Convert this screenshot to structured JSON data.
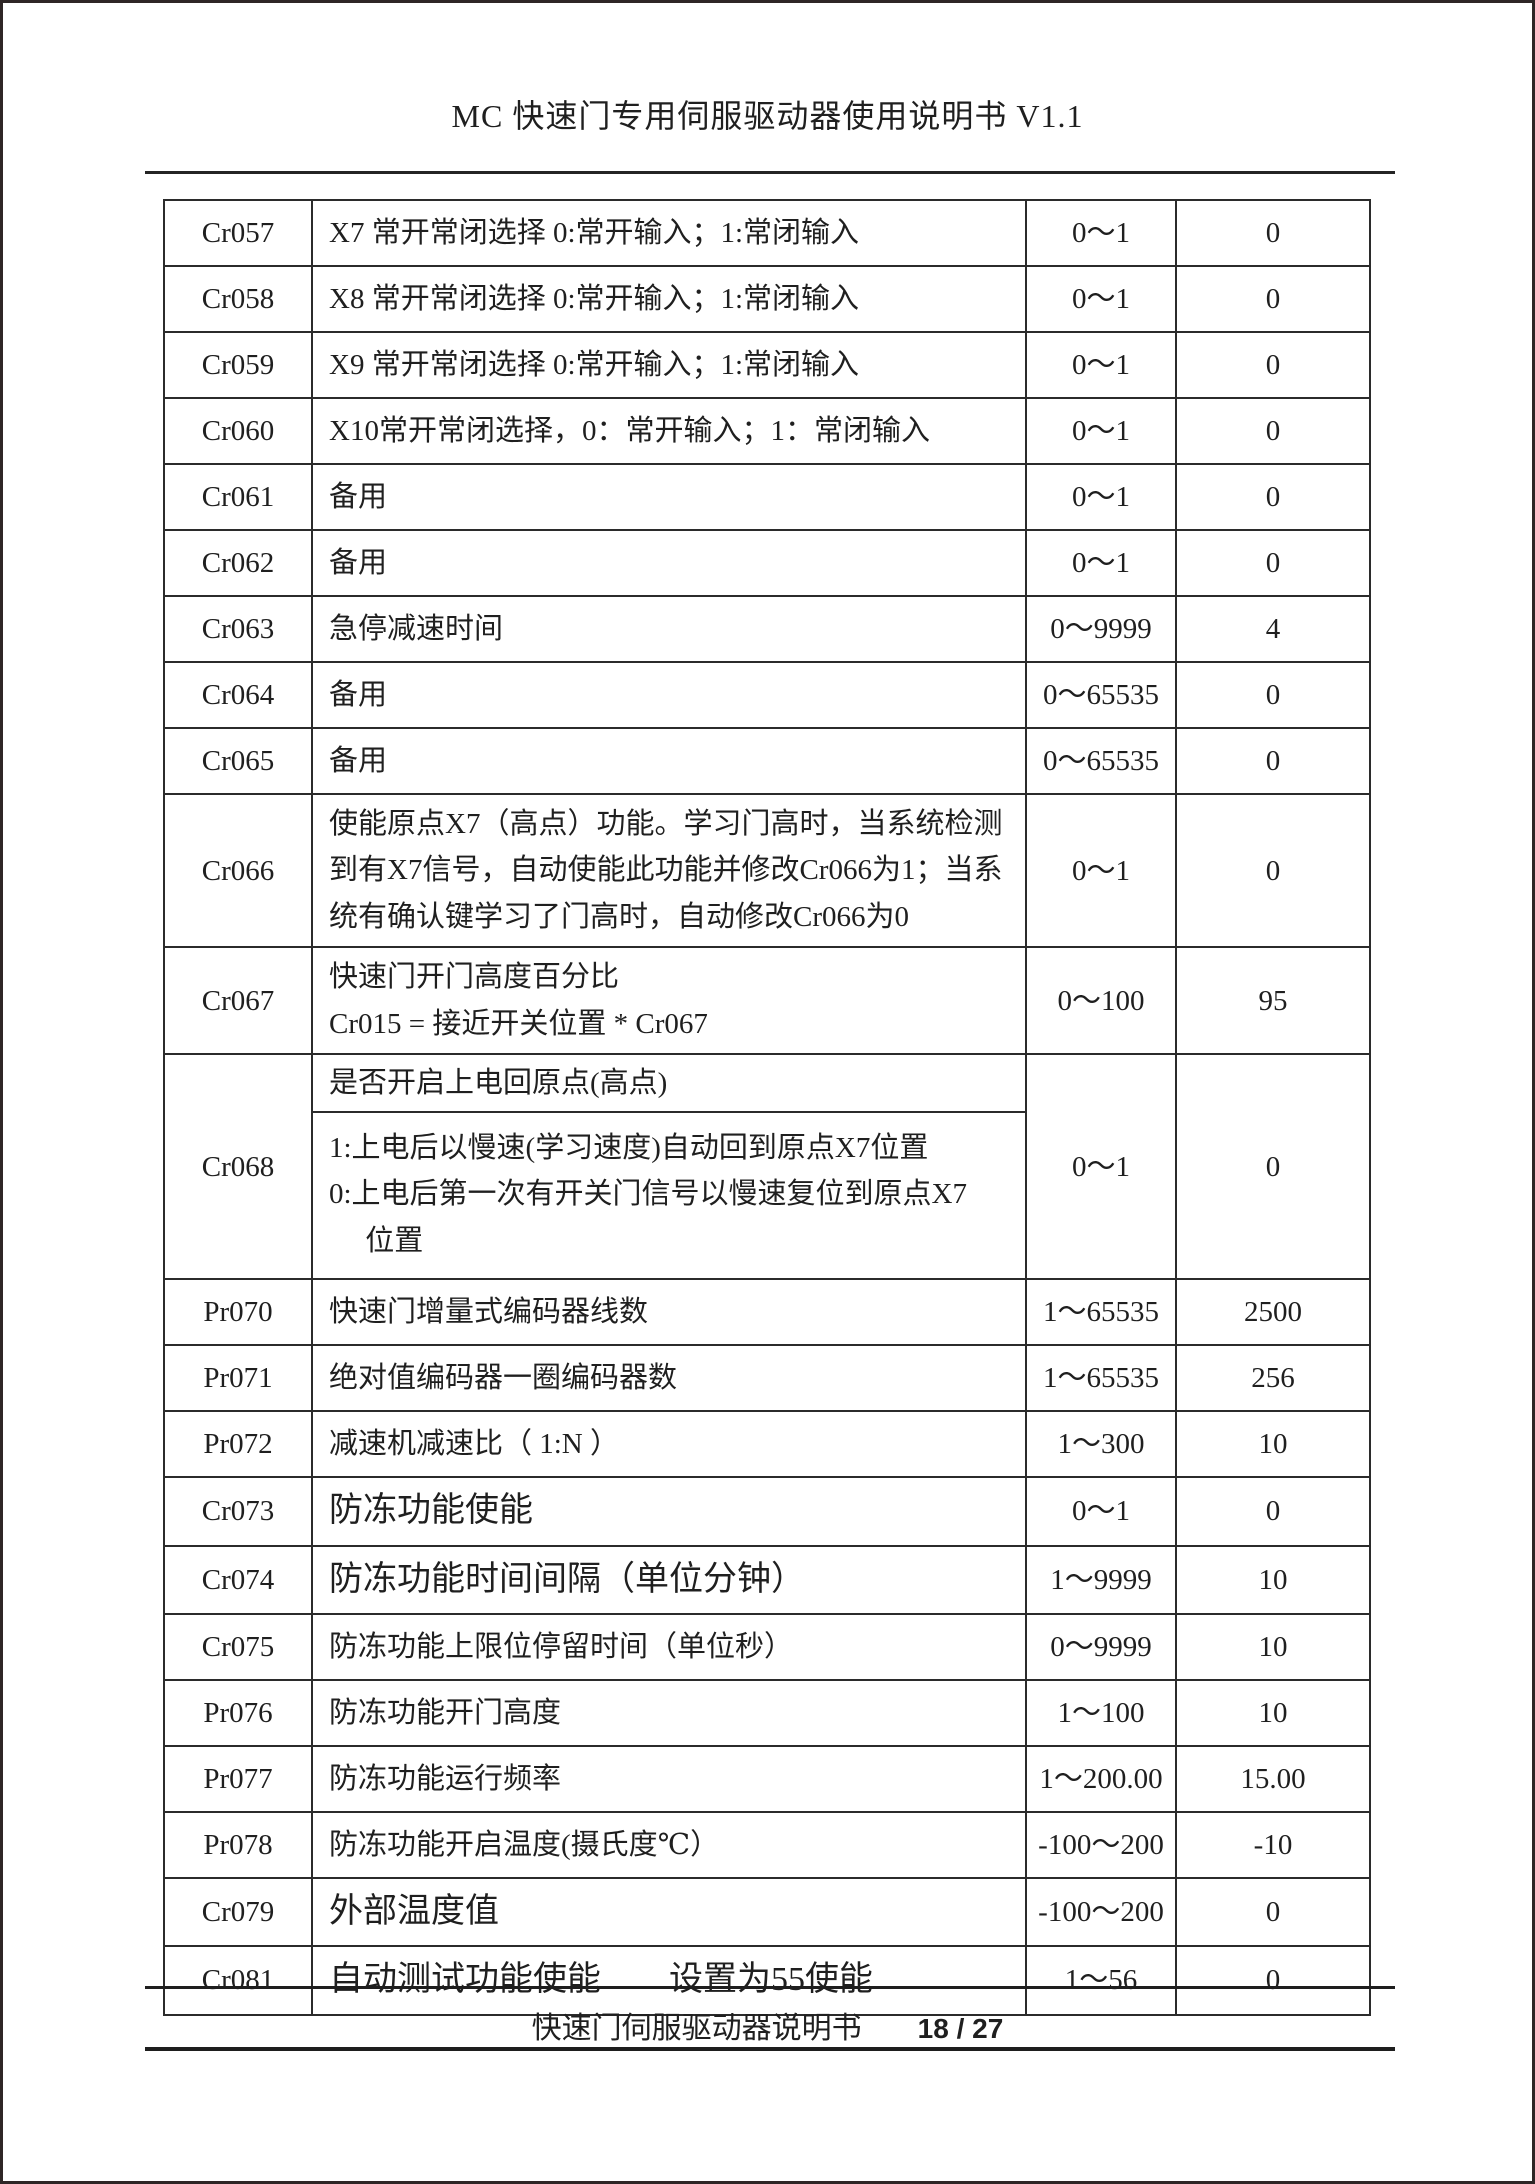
{
  "header": {
    "title": "MC 快速门专用伺服驱动器使用说明书 V1.1"
  },
  "table": {
    "rows": [
      {
        "code": "Cr057",
        "desc_lines": [
          "X7 常开常闭选择 0:常开输入；1:常闭输入"
        ],
        "range": "0～1",
        "value": "0"
      },
      {
        "code": "Cr058",
        "desc_lines": [
          "X8 常开常闭选择 0:常开输入；1:常闭输入"
        ],
        "range": "0～1",
        "value": "0"
      },
      {
        "code": "Cr059",
        "desc_lines": [
          "X9 常开常闭选择 0:常开输入；1:常闭输入"
        ],
        "range": "0～1",
        "value": "0"
      },
      {
        "code": "Cr060",
        "desc_lines": [
          "X10常开常闭选择，0：常开输入；1：常闭输入"
        ],
        "range": "0～1",
        "value": "0"
      },
      {
        "code": "Cr061",
        "desc_lines": [
          "备用"
        ],
        "range": "0～1",
        "value": "0"
      },
      {
        "code": "Cr062",
        "desc_lines": [
          "备用"
        ],
        "range": "0～1",
        "value": "0"
      },
      {
        "code": "Cr063",
        "desc_lines": [
          "急停减速时间"
        ],
        "range": "0～9999",
        "value": "4"
      },
      {
        "code": "Cr064",
        "desc_lines": [
          "备用"
        ],
        "range": "0～65535",
        "value": "0"
      },
      {
        "code": "Cr065",
        "desc_lines": [
          "备用"
        ],
        "range": "0～65535",
        "value": "0"
      },
      {
        "code": "Cr066",
        "desc_lines": [
          "使能原点X7（高点）功能。学习门高时，当系统检测到有X7信号，自动使能此功能并修改Cr066为1；当系统有确认键学习了门高时，自动修改Cr066为0"
        ],
        "range": "0～1",
        "value": "0"
      },
      {
        "code": "Cr067",
        "desc_lines": [
          "快速门开门高度百分比",
          "Cr015 = 接近开关位置 * Cr067"
        ],
        "range": "0～100",
        "value": "95"
      },
      {
        "code": "Cr068",
        "desc_split": {
          "top": "是否开启上电回原点(高点)",
          "bottom_lines": [
            "1:上电后以慢速(学习速度)自动回到原点X7位置",
            "0:上电后第一次有开关门信号以慢速复位到原点X7",
            "　 位置"
          ]
        },
        "range": "0～1",
        "value": "0"
      },
      {
        "code": "Pr070",
        "desc_lines": [
          "快速门增量式编码器线数"
        ],
        "range": "1～65535",
        "value": "2500"
      },
      {
        "code": "Pr071",
        "desc_lines": [
          "绝对值编码器一圈编码器数"
        ],
        "range": "1～65535",
        "value": "256"
      },
      {
        "code": "Pr072",
        "desc_lines": [
          "减速机减速比（ 1:N ）"
        ],
        "range": "1～300",
        "value": "10"
      },
      {
        "code": "Cr073",
        "desc_lines": [
          "防冻功能使能"
        ],
        "range": "0～1",
        "value": "0",
        "large": true
      },
      {
        "code": "Cr074",
        "desc_lines": [
          "防冻功能时间间隔（单位分钟）"
        ],
        "range": "1～9999",
        "value": "10",
        "large": true
      },
      {
        "code": "Cr075",
        "desc_lines": [
          "防冻功能上限位停留时间（单位秒）"
        ],
        "range": "0～9999",
        "value": "10"
      },
      {
        "code": "Pr076",
        "desc_lines": [
          "防冻功能开门高度"
        ],
        "range": "1～100",
        "value": "10"
      },
      {
        "code": "Pr077",
        "desc_lines": [
          "防冻功能运行频率"
        ],
        "range": "1～200.00",
        "value": "15.00"
      },
      {
        "code": "Pr078",
        "desc_lines": [
          "防冻功能开启温度(摄氏度℃）"
        ],
        "range": "-100～200",
        "value": "-10"
      },
      {
        "code": "Cr079",
        "desc_lines": [
          "外部温度值"
        ],
        "range": "-100～200",
        "value": "0",
        "large": true
      },
      {
        "code": "Cr081",
        "desc_lines": [
          "自动测试功能使能　　设置为55使能"
        ],
        "range": "1～56",
        "value": "0",
        "large": true
      }
    ]
  },
  "footer": {
    "doc_label": "快速门伺服驱动器说明书",
    "page_label": "18 / 27"
  }
}
